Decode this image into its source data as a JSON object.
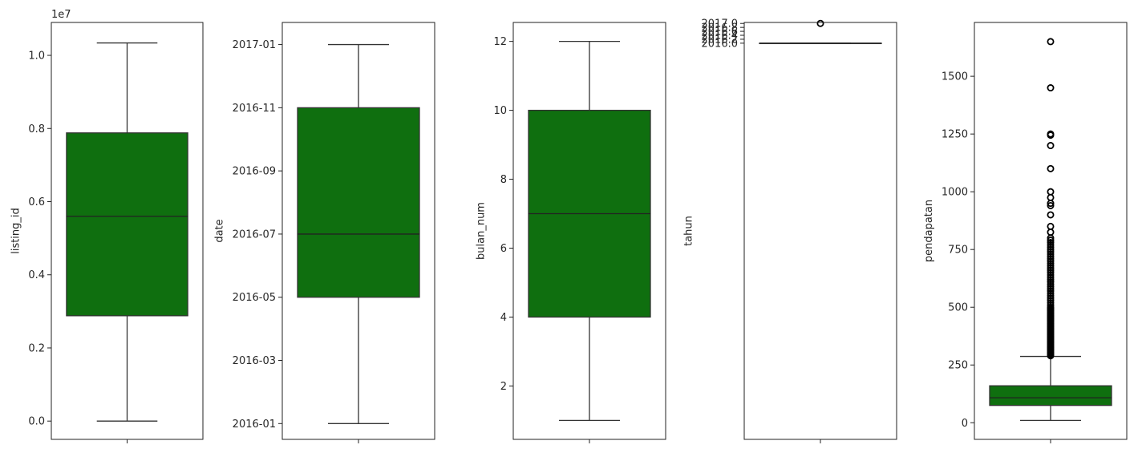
{
  "colors": {
    "box_fill": "#0f6f0f",
    "line": "#333333",
    "frame": "#222222"
  },
  "chart_data": [
    {
      "type": "box",
      "ylabel": "listing_id",
      "offset_label": "1e7",
      "ylim": [
        -0.05,
        1.09
      ],
      "yticks": [
        0.0,
        0.2,
        0.4,
        0.6,
        0.8,
        1.0
      ],
      "yticklabels": [
        "0.0",
        "0.2",
        "0.4",
        "0.6",
        "0.8",
        "1.0"
      ],
      "box": {
        "whislo": 0.0,
        "q1": 0.288,
        "med": 0.56,
        "q3": 0.788,
        "whishi": 1.034
      },
      "fliers": []
    },
    {
      "type": "box",
      "ylabel": "date",
      "offset_label": "",
      "ylim": [
        -0.5,
        12.7
      ],
      "yticks": [
        0,
        2,
        4,
        6,
        8,
        10,
        12
      ],
      "yticklabels": [
        "2016-01",
        "2016-03",
        "2016-05",
        "2016-07",
        "2016-09",
        "2016-11",
        "2017-01"
      ],
      "box": {
        "whislo": 0.0,
        "q1": 4.0,
        "med": 6.0,
        "q3": 10.0,
        "whishi": 12.0
      },
      "fliers": []
    },
    {
      "type": "box",
      "ylabel": "bulan_num",
      "offset_label": "",
      "ylim": [
        0.45,
        12.55
      ],
      "yticks": [
        2,
        4,
        6,
        8,
        10,
        12
      ],
      "yticklabels": [
        "2",
        "4",
        "6",
        "8",
        "10",
        "12"
      ],
      "box": {
        "whislo": 1,
        "q1": 4,
        "med": 7,
        "q3": 10,
        "whishi": 12
      },
      "fliers": []
    },
    {
      "type": "box",
      "ylabel": "tahun",
      "offset_label": "",
      "ylim": [
        1995.95,
        2017.05
      ],
      "yticks": [
        2016.0,
        2016.2,
        2016.4,
        2016.6,
        2016.8,
        2017.0
      ],
      "yticklabels": [
        "2016.0",
        "2016.2",
        "2016.4",
        "2016.6",
        "2016.8",
        "2017.0"
      ],
      "box": {
        "whislo": 2016.0,
        "q1": 2016.0,
        "med": 2016.0,
        "q3": 2016.0,
        "whishi": 2016.0
      },
      "fliers": [
        2017.0
      ]
    },
    {
      "type": "box",
      "ylabel": "pendapatan",
      "offset_label": "",
      "ylim": [
        -72,
        1733
      ],
      "yticks": [
        0,
        250,
        500,
        750,
        1000,
        1250,
        1500
      ],
      "yticklabels": [
        "0",
        "250",
        "500",
        "750",
        "1000",
        "1250",
        "1500"
      ],
      "box": {
        "whislo": 10,
        "q1": 75,
        "med": 108,
        "q3": 160,
        "whishi": 287
      },
      "fliers": [
        290,
        295,
        300,
        305,
        310,
        315,
        320,
        325,
        330,
        335,
        340,
        345,
        350,
        355,
        360,
        365,
        370,
        375,
        380,
        385,
        390,
        395,
        400,
        405,
        410,
        415,
        420,
        425,
        430,
        435,
        440,
        445,
        450,
        455,
        460,
        465,
        470,
        475,
        480,
        485,
        490,
        495,
        500,
        510,
        520,
        530,
        540,
        550,
        560,
        570,
        580,
        590,
        600,
        610,
        620,
        630,
        640,
        650,
        660,
        670,
        680,
        690,
        700,
        710,
        720,
        730,
        740,
        750,
        760,
        770,
        780,
        790,
        800,
        825,
        850,
        900,
        940,
        950,
        975,
        1000,
        1100,
        1200,
        1245,
        1250,
        1450,
        1650
      ]
    }
  ]
}
